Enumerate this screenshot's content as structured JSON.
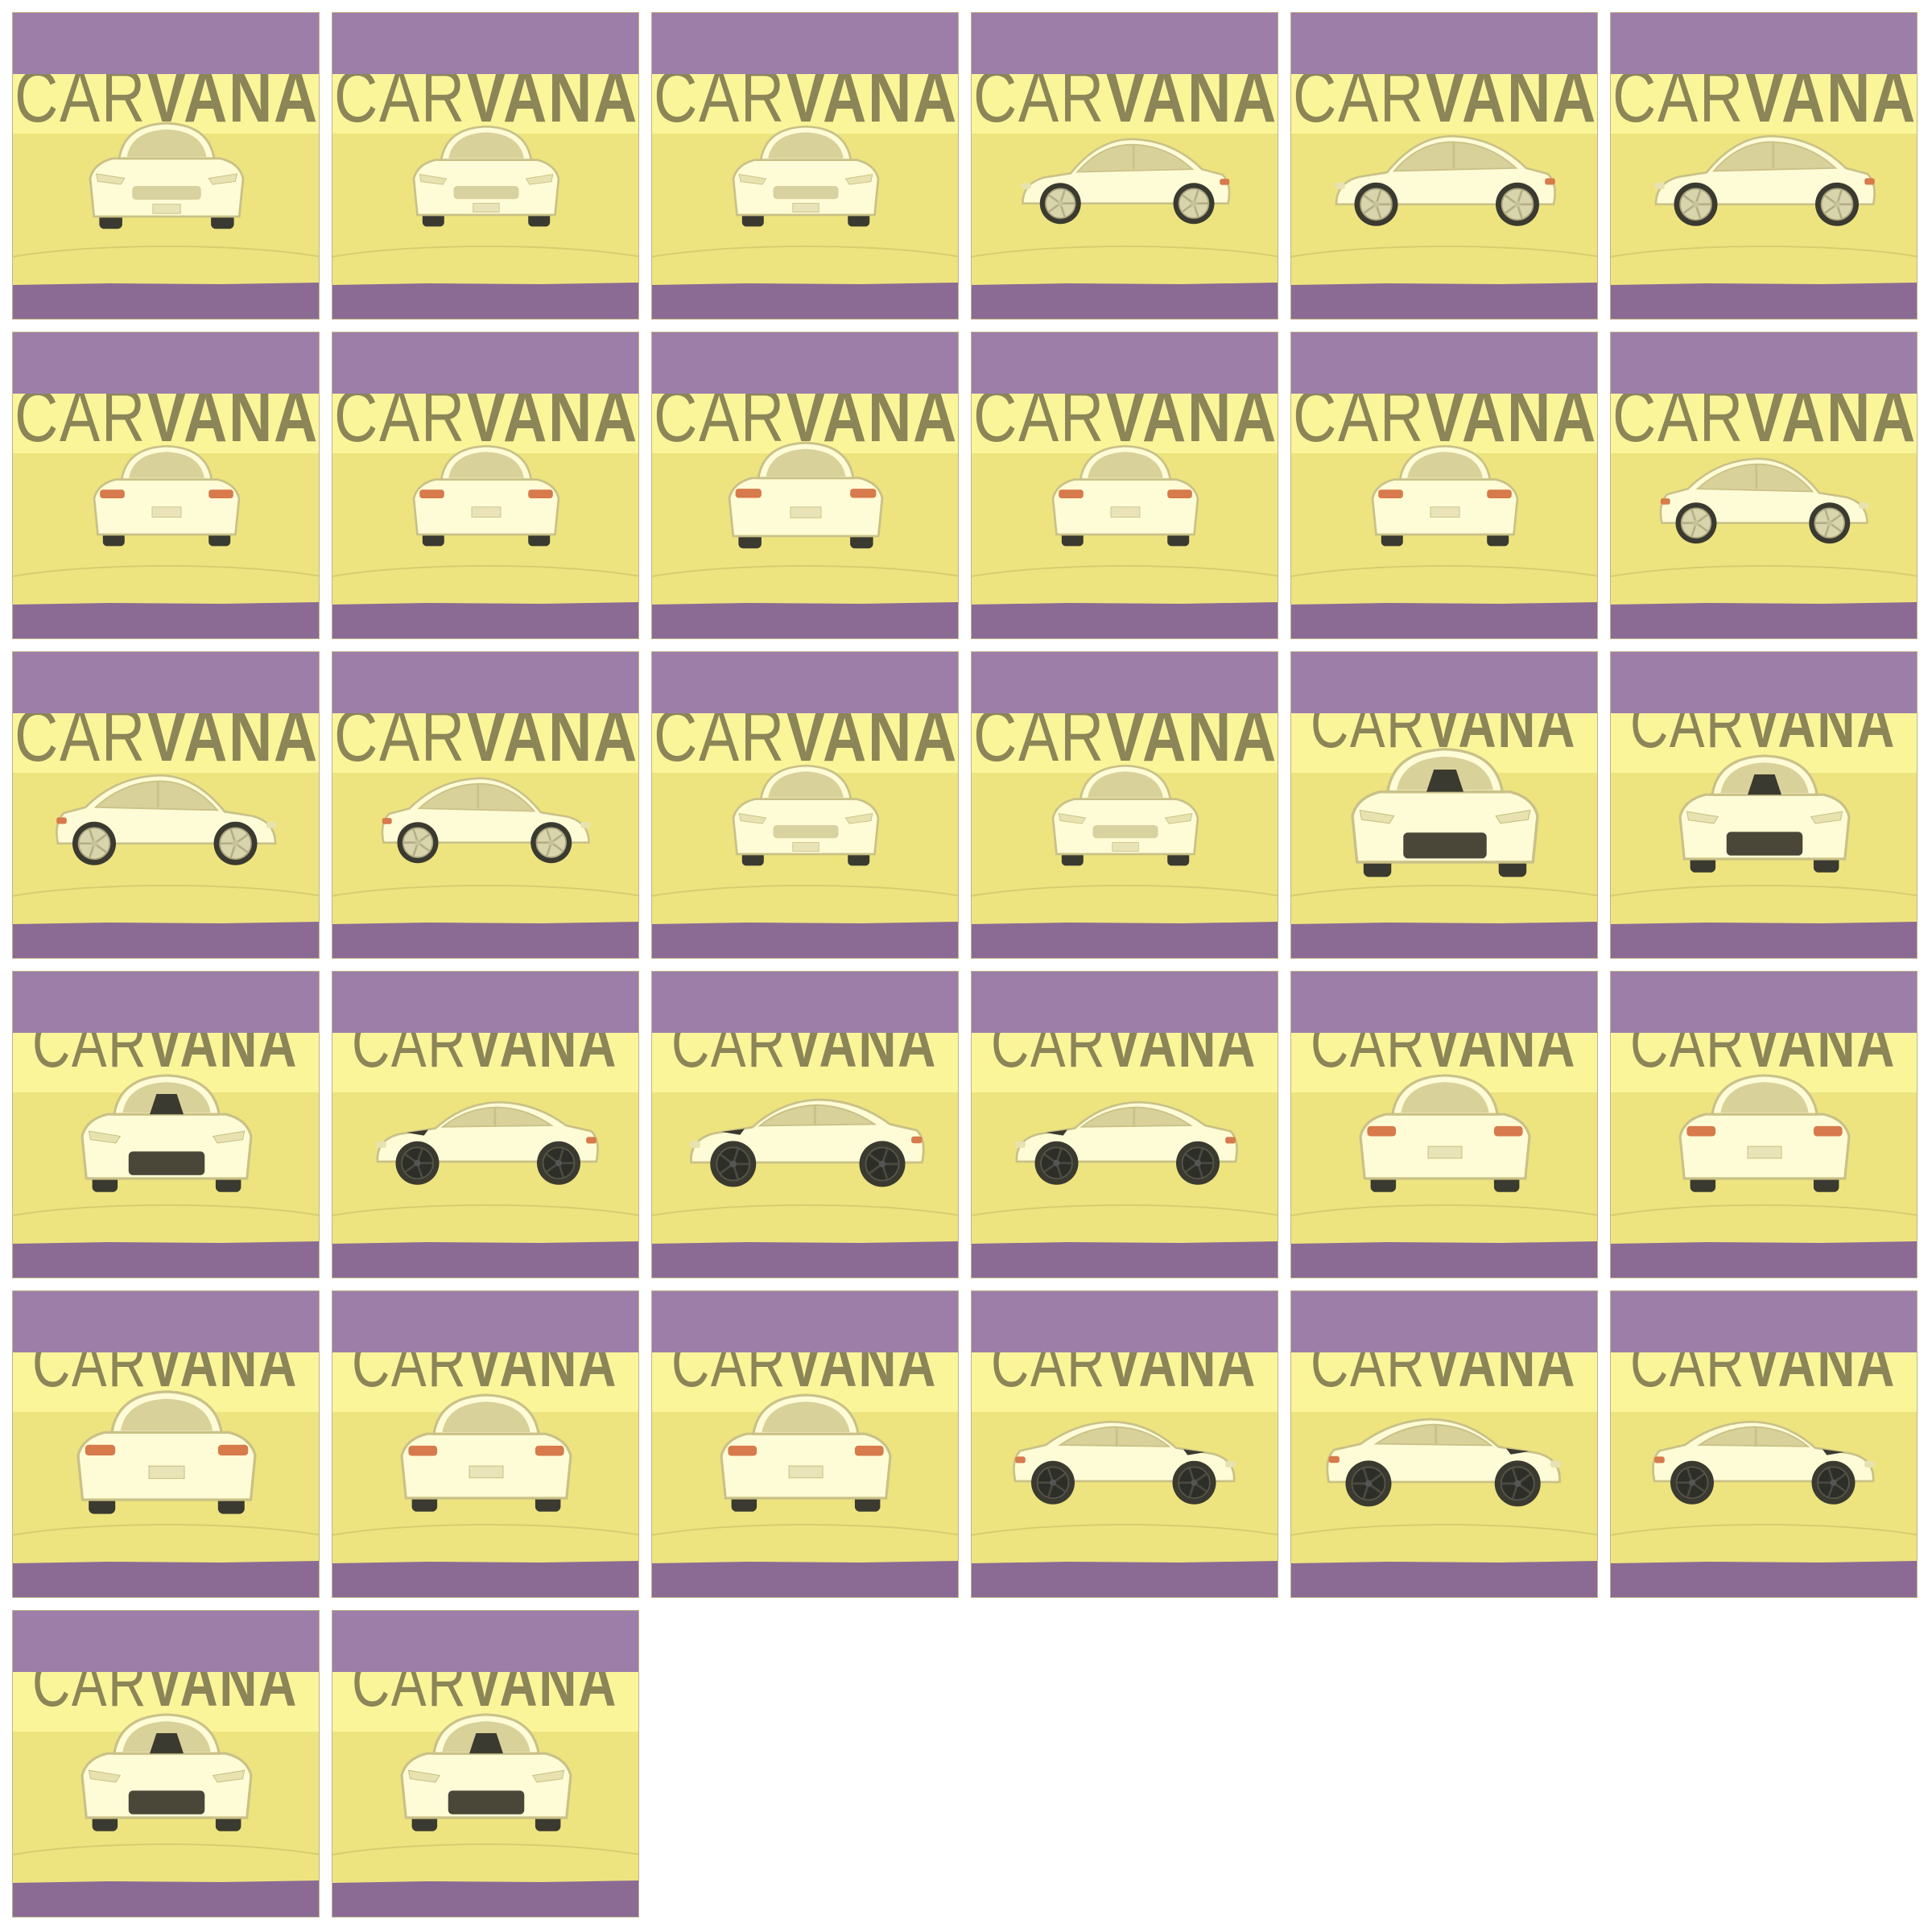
{
  "grid": {
    "columns": 6,
    "rows": 6,
    "tile_count": 32
  },
  "colors": {
    "mask_top": "#9d7ea8",
    "mask_bottom": "#8b6b94",
    "background": "#fbf59a",
    "floor": "#ede47f",
    "wordmark": "#8b8558",
    "car_body": "#fefcd6",
    "car_outline": "#c9c187",
    "glass": "#d9d19a",
    "tire": "#3a3a30",
    "rim_mazda": "#d8d4ac",
    "rim_camaro": "#2e2e28",
    "tail_light": "#d77a4c",
    "camaro_grille": "#4a4638"
  },
  "wordmark": {
    "text_light": "CAR",
    "text_bold": "VANA"
  },
  "tiles": [
    {
      "model": "mazda6",
      "view": "front"
    },
    {
      "model": "mazda6",
      "view": "front-left"
    },
    {
      "model": "mazda6",
      "view": "front-left"
    },
    {
      "model": "mazda6",
      "view": "left-front"
    },
    {
      "model": "mazda6",
      "view": "left"
    },
    {
      "model": "mazda6",
      "view": "left"
    },
    {
      "model": "mazda6",
      "view": "rear-left"
    },
    {
      "model": "mazda6",
      "view": "rear-left"
    },
    {
      "model": "mazda6",
      "view": "rear"
    },
    {
      "model": "mazda6",
      "view": "rear-right"
    },
    {
      "model": "mazda6",
      "view": "rear-right"
    },
    {
      "model": "mazda6",
      "view": "right-rear"
    },
    {
      "model": "mazda6",
      "view": "right"
    },
    {
      "model": "mazda6",
      "view": "right-front"
    },
    {
      "model": "mazda6",
      "view": "front-right"
    },
    {
      "model": "mazda6",
      "view": "front-right"
    },
    {
      "model": "camaro",
      "view": "front"
    },
    {
      "model": "camaro",
      "view": "front-left"
    },
    {
      "model": "camaro",
      "view": "front-left"
    },
    {
      "model": "camaro",
      "view": "left-front"
    },
    {
      "model": "camaro",
      "view": "left"
    },
    {
      "model": "camaro",
      "view": "left-rear"
    },
    {
      "model": "camaro",
      "view": "rear-left"
    },
    {
      "model": "camaro",
      "view": "rear-left"
    },
    {
      "model": "camaro",
      "view": "rear"
    },
    {
      "model": "camaro",
      "view": "rear-right"
    },
    {
      "model": "camaro",
      "view": "rear-right"
    },
    {
      "model": "camaro",
      "view": "right-rear"
    },
    {
      "model": "camaro",
      "view": "right"
    },
    {
      "model": "camaro",
      "view": "right-front"
    },
    {
      "model": "camaro",
      "view": "front-right"
    },
    {
      "model": "camaro",
      "view": "front-right"
    }
  ]
}
